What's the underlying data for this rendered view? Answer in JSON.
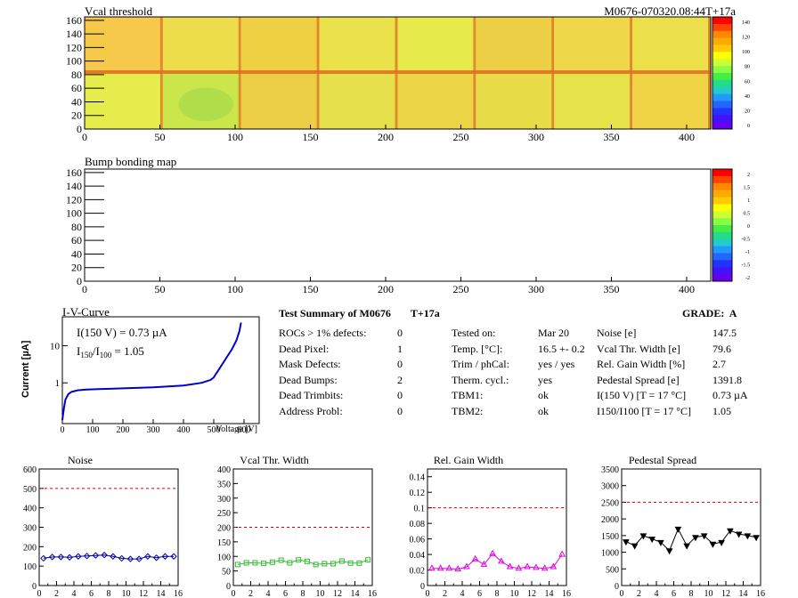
{
  "heatmap_top": {
    "title": "Vcal threshold",
    "module_id": "M0676-070320.08:44T+17a",
    "x_ticks": [
      "0",
      "50",
      "100",
      "150",
      "200",
      "250",
      "300",
      "350",
      "400"
    ],
    "y_ticks": [
      "0",
      "20",
      "40",
      "60",
      "80",
      "100",
      "120",
      "140",
      "160"
    ],
    "palette_ticks": [
      "140",
      "120",
      "100",
      "80",
      "60",
      "40",
      "20",
      "0"
    ],
    "colors": {
      "low": "#9fd64a",
      "mid": "#e8f03c",
      "high": "#f0a030",
      "edge": "#e05a10"
    }
  },
  "heatmap_bottom": {
    "title": "Bump bonding map",
    "x_ticks": [
      "0",
      "50",
      "100",
      "150",
      "200",
      "250",
      "300",
      "350",
      "400"
    ],
    "y_ticks": [
      "0",
      "20",
      "40",
      "60",
      "80",
      "100",
      "120",
      "140",
      "160"
    ],
    "palette_ticks": [
      "2",
      "1.5",
      "1",
      "0.5",
      "0",
      "-0.5",
      "-1",
      "-1.5",
      "-2"
    ]
  },
  "iv": {
    "title": "I-V-Curve",
    "ylabel": "Current [µA]",
    "xlabel": "Voltage [V]",
    "x_ticks": [
      "0",
      "100",
      "200",
      "300",
      "400",
      "500",
      "600"
    ],
    "y_ticks": [
      "1",
      "10"
    ],
    "legend1": "I(150 V) = 0.73 µA",
    "legend2_prefix": "I",
    "legend2_sub1": "150",
    "legend2_mid": "/I",
    "legend2_sub2": "100",
    "legend2_val": "=  1.05"
  },
  "summary": {
    "title": "Test Summary of M0676",
    "temp_tag": "T+17a",
    "grade_label": "GRADE:",
    "grade": "A",
    "left": [
      {
        "label": "ROCs > 1% defects:",
        "value": "0"
      },
      {
        "label": "Dead Pixel:",
        "value": "1"
      },
      {
        "label": "Mask Defects:",
        "value": "0"
      },
      {
        "label": "Dead Bumps:",
        "value": "2"
      },
      {
        "label": "Dead Trimbits:",
        "value": "0"
      },
      {
        "label": "Address Probl:",
        "value": "0"
      }
    ],
    "middle": [
      {
        "label": "Tested on:",
        "value": "Mar 20"
      },
      {
        "label": "Temp. [°C]:",
        "value": "16.5 +- 0.2"
      },
      {
        "label": "Trim / phCal:",
        "value": "yes / yes"
      },
      {
        "label": "Therm. cycl.:",
        "value": "yes"
      },
      {
        "label": "TBM1:",
        "value": "ok"
      },
      {
        "label": "TBM2:",
        "value": "ok"
      }
    ],
    "right": [
      {
        "label": "Noise [e]",
        "value": "147.5"
      },
      {
        "label": "Vcal Thr. Width [e]",
        "value": "79.6"
      },
      {
        "label": "Rel. Gain Width [%]",
        "value": "2.7"
      },
      {
        "label": "Pedestal Spread [e]",
        "value": "1391.8"
      },
      {
        "label": "I(150 V) [T = 17 °C]",
        "value": "0.73 µA"
      },
      {
        "label": "I150/I100 [T = 17 °C]",
        "value": "1.05"
      }
    ]
  },
  "chart_data": [
    {
      "type": "line",
      "title": "I-V-Curve",
      "xlabel": "Voltage [V]",
      "ylabel": "Current [µA]",
      "log_y": true,
      "xlim": [
        0,
        650
      ],
      "ylim": [
        0.08,
        60
      ],
      "x": [
        0,
        5,
        10,
        20,
        30,
        50,
        80,
        120,
        200,
        300,
        400,
        460,
        490,
        500,
        520,
        540,
        560,
        575,
        585,
        590
      ],
      "y": [
        0.1,
        0.2,
        0.35,
        0.5,
        0.57,
        0.63,
        0.66,
        0.68,
        0.71,
        0.76,
        0.85,
        1.0,
        1.2,
        1.4,
        2.5,
        4.5,
        8,
        14,
        25,
        42
      ],
      "color": "#0000cc"
    },
    {
      "type": "line",
      "title": "Noise",
      "xlim": [
        0,
        16
      ],
      "ylim": [
        0,
        600
      ],
      "x_ticks": [
        "0",
        "2",
        "4",
        "6",
        "8",
        "10",
        "12",
        "14",
        "16"
      ],
      "y_ticks": [
        "0",
        "100",
        "200",
        "300",
        "400",
        "500",
        "600"
      ],
      "limit": 500,
      "x": [
        0.5,
        1.5,
        2.5,
        3.5,
        4.5,
        5.5,
        6.5,
        7.5,
        8.5,
        9.5,
        10.5,
        11.5,
        12.5,
        13.5,
        14.5,
        15.5
      ],
      "y": [
        140,
        147,
        147,
        145,
        150,
        152,
        155,
        157,
        150,
        140,
        137,
        137,
        150,
        143,
        150,
        150
      ],
      "marker": "diamond",
      "color": "#0000aa"
    },
    {
      "type": "line",
      "title": "Vcal Thr. Width",
      "xlim": [
        0,
        16
      ],
      "ylim": [
        0,
        400
      ],
      "x_ticks": [
        "0",
        "2",
        "4",
        "6",
        "8",
        "10",
        "12",
        "14",
        "16"
      ],
      "y_ticks": [
        "0",
        "50",
        "100",
        "150",
        "200",
        "250",
        "300",
        "350",
        "400"
      ],
      "limit": 200,
      "x": [
        0.5,
        1.5,
        2.5,
        3.5,
        4.5,
        5.5,
        6.5,
        7.5,
        8.5,
        9.5,
        10.5,
        11.5,
        12.5,
        13.5,
        14.5,
        15.5
      ],
      "y": [
        72,
        78,
        78,
        76,
        80,
        87,
        78,
        88,
        83,
        72,
        75,
        75,
        84,
        77,
        77,
        88
      ],
      "marker": "square",
      "color": "#33bb33"
    },
    {
      "type": "line",
      "title": "Rel. Gain Width",
      "xlim": [
        0,
        16
      ],
      "ylim": [
        0,
        0.15
      ],
      "x_ticks": [
        "0",
        "2",
        "4",
        "6",
        "8",
        "10",
        "12",
        "14",
        "16"
      ],
      "y_ticks": [
        "0",
        "0.02",
        "0.04",
        "0.06",
        "0.08",
        "0.1",
        "0.12",
        "0.14"
      ],
      "limit": 0.1,
      "x": [
        0.5,
        1.5,
        2.5,
        3.5,
        4.5,
        5.5,
        6.5,
        7.5,
        8.5,
        9.5,
        10.5,
        11.5,
        12.5,
        13.5,
        14.5,
        15.5
      ],
      "y": [
        0.022,
        0.022,
        0.022,
        0.021,
        0.024,
        0.034,
        0.027,
        0.041,
        0.031,
        0.024,
        0.022,
        0.024,
        0.023,
        0.022,
        0.024,
        0.04
      ],
      "marker": "triangle",
      "color": "#dd00dd"
    },
    {
      "type": "line",
      "title": "Pedestal Spread",
      "xlim": [
        0,
        16
      ],
      "ylim": [
        0,
        3500
      ],
      "x_ticks": [
        "0",
        "2",
        "4",
        "6",
        "8",
        "10",
        "12",
        "14",
        "16"
      ],
      "y_ticks": [
        "0",
        "500",
        "1000",
        "1500",
        "2000",
        "2500",
        "3000",
        "3500"
      ],
      "limit": 2500,
      "x": [
        0.5,
        1.5,
        2.5,
        3.5,
        4.5,
        5.5,
        6.5,
        7.5,
        8.5,
        9.5,
        10.5,
        11.5,
        12.5,
        13.5,
        14.5,
        15.5
      ],
      "y": [
        1320,
        1200,
        1500,
        1400,
        1300,
        1050,
        1700,
        1200,
        1450,
        1500,
        1250,
        1300,
        1650,
        1550,
        1500,
        1450
      ],
      "marker": "triangle-down",
      "color": "#000000"
    }
  ]
}
